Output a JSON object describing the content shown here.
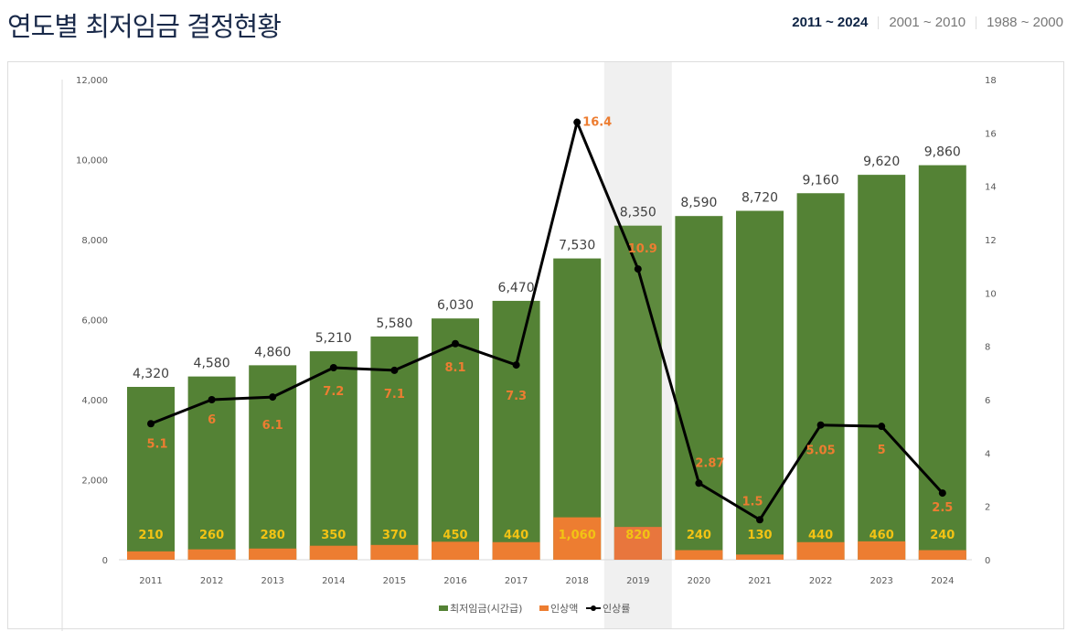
{
  "header": {
    "title": "연도별 최저임금 결정현황",
    "ranges": [
      {
        "label": "2011 ~ 2024",
        "active": true
      },
      {
        "label": "2001 ~ 2010",
        "active": false
      },
      {
        "label": "1988 ~ 2000",
        "active": false
      }
    ]
  },
  "chart_data": {
    "type": "bar",
    "title": "",
    "categories": [
      "2011",
      "2012",
      "2013",
      "2014",
      "2015",
      "2016",
      "2017",
      "2018",
      "2019",
      "2020",
      "2021",
      "2022",
      "2023",
      "2024"
    ],
    "highlighted_category": "2019",
    "series": [
      {
        "name": "최저임금(시간급)",
        "type": "bar",
        "axis": "left",
        "color": "#548235",
        "values": [
          4320,
          4580,
          4860,
          5210,
          5580,
          6030,
          6470,
          7530,
          8350,
          8590,
          8720,
          9160,
          9620,
          9860
        ]
      },
      {
        "name": "인상액",
        "type": "bar",
        "axis": "left",
        "color": "#ed7d31",
        "values": [
          210,
          260,
          280,
          350,
          370,
          450,
          440,
          1060,
          820,
          240,
          130,
          440,
          460,
          240
        ]
      },
      {
        "name": "인상률",
        "type": "line",
        "axis": "right",
        "color": "#000000",
        "values": [
          5.1,
          6,
          6.1,
          7.2,
          7.1,
          8.1,
          7.3,
          16.4,
          10.9,
          2.87,
          1.5,
          5.05,
          5,
          2.5
        ]
      }
    ],
    "value_labels": {
      "wage": [
        "4,320",
        "4,580",
        "4,860",
        "5,210",
        "5,580",
        "6,030",
        "6,470",
        "7,530",
        "8,350",
        "8,590",
        "8,720",
        "9,160",
        "9,620",
        "9,860"
      ],
      "increase": [
        "210",
        "260",
        "280",
        "350",
        "370",
        "450",
        "440",
        "1,060",
        "820",
        "240",
        "130",
        "440",
        "460",
        "240"
      ],
      "rate": [
        "5.1",
        "6",
        "6.1",
        "7.2",
        "7.1",
        "8.1",
        "7.3",
        "16.4",
        "10.9",
        "2.87",
        "1.5",
        "5.05",
        "5",
        "2.5"
      ]
    },
    "left_axis": {
      "ylim": [
        0,
        12000
      ],
      "ticks": [
        "0",
        "2,000",
        "4,000",
        "6,000",
        "8,000",
        "10,000",
        "12,000"
      ]
    },
    "right_axis": {
      "ylim": [
        0,
        18
      ],
      "ticks": [
        "0",
        "2",
        "4",
        "6",
        "8",
        "10",
        "12",
        "14",
        "16",
        "18"
      ]
    },
    "grid": false,
    "legend_position": "bottom",
    "colors": {
      "increase_label": "#f2c314",
      "rate_label": "#ed7d31",
      "wage_label": "#404040"
    }
  }
}
